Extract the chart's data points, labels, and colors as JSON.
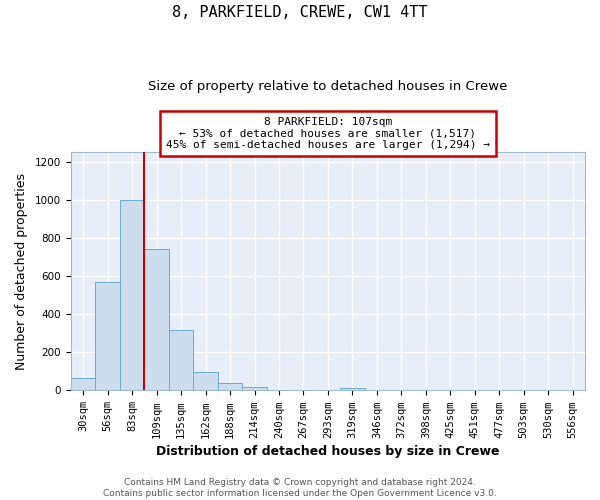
{
  "title": "8, PARKFIELD, CREWE, CW1 4TT",
  "subtitle": "Size of property relative to detached houses in Crewe",
  "xlabel": "Distribution of detached houses by size in Crewe",
  "ylabel": "Number of detached properties",
  "bin_labels": [
    "30sqm",
    "56sqm",
    "83sqm",
    "109sqm",
    "135sqm",
    "162sqm",
    "188sqm",
    "214sqm",
    "240sqm",
    "267sqm",
    "293sqm",
    "319sqm",
    "346sqm",
    "372sqm",
    "398sqm",
    "425sqm",
    "451sqm",
    "477sqm",
    "503sqm",
    "530sqm",
    "556sqm"
  ],
  "bar_values": [
    65,
    570,
    1000,
    745,
    315,
    95,
    38,
    18,
    0,
    0,
    0,
    10,
    0,
    0,
    0,
    0,
    0,
    0,
    0,
    0,
    0
  ],
  "bar_color": "#ccdded",
  "bar_edgecolor": "#6aaad4",
  "vline_bin_index": 3,
  "annotation_text": "8 PARKFIELD: 107sqm\n← 53% of detached houses are smaller (1,517)\n45% of semi-detached houses are larger (1,294) →",
  "annotation_box_color": "#ffffff",
  "annotation_box_edgecolor": "#cc0000",
  "vline_color": "#cc0000",
  "ylim": [
    0,
    1250
  ],
  "yticks": [
    0,
    200,
    400,
    600,
    800,
    1000,
    1200
  ],
  "footer_line1": "Contains HM Land Registry data © Crown copyright and database right 2024.",
  "footer_line2": "Contains public sector information licensed under the Open Government Licence v3.0.",
  "plot_bg_color": "#e8eef8",
  "fig_bg_color": "#ffffff",
  "grid_color": "#ffffff",
  "title_fontsize": 11,
  "subtitle_fontsize": 9.5,
  "axis_label_fontsize": 9,
  "tick_fontsize": 7.5,
  "footer_fontsize": 6.5,
  "annotation_fontsize": 8
}
